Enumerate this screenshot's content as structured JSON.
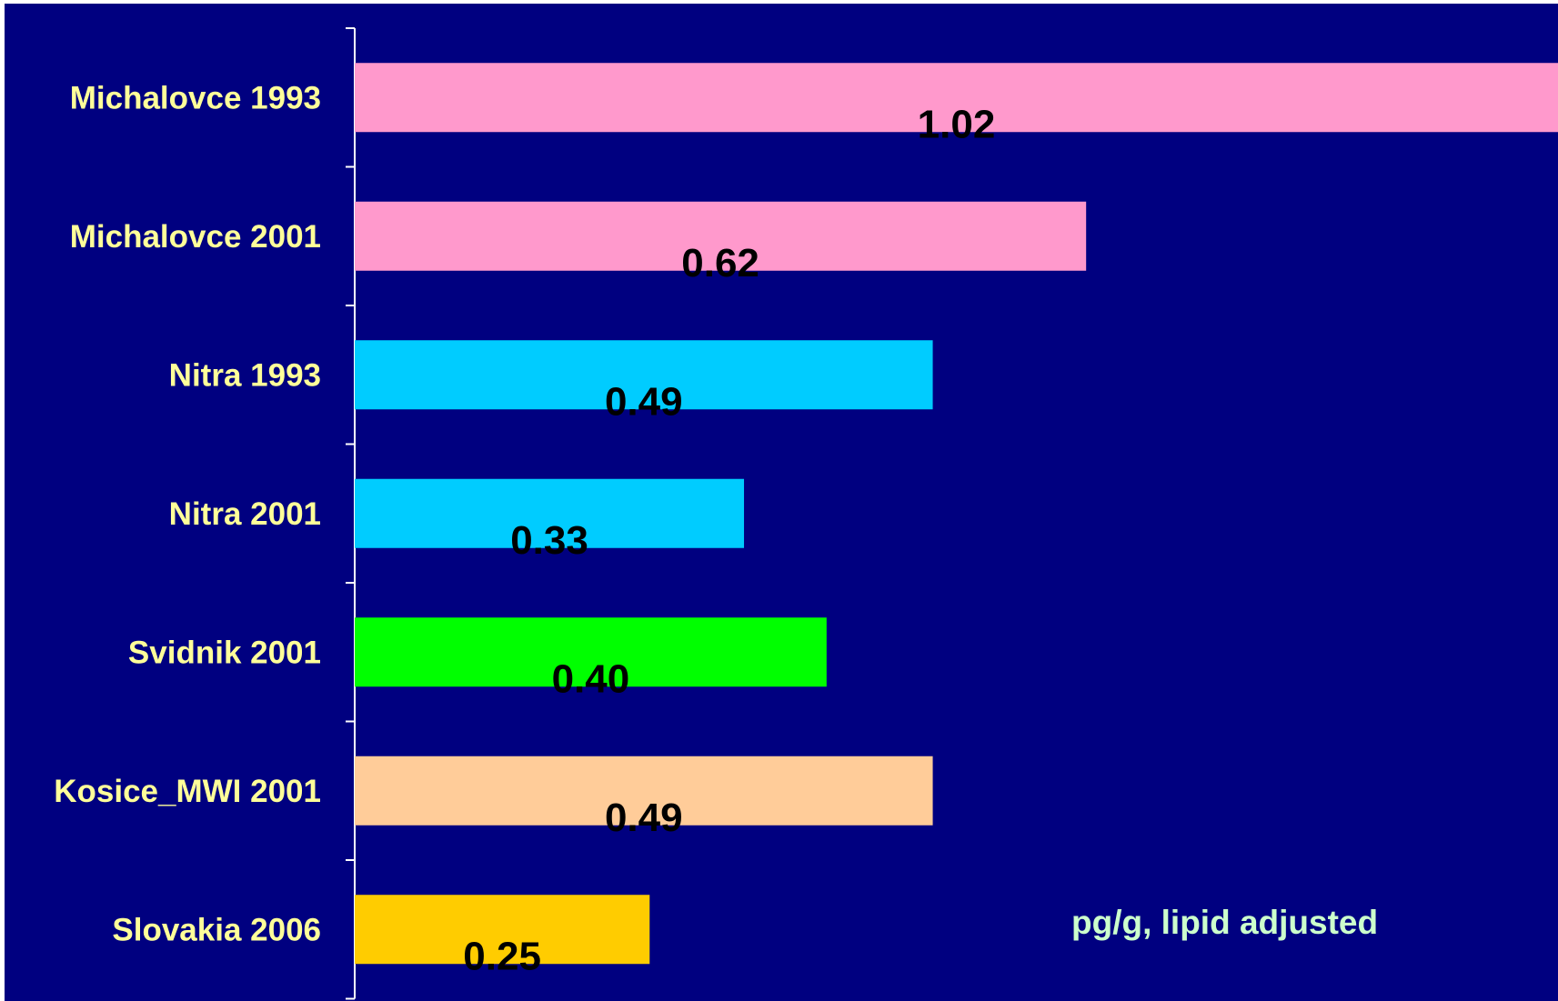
{
  "colors": {
    "background": "#000080",
    "label": "#FFFF99",
    "value_label": "#000000",
    "unit_label": "#CCFFCC",
    "axis": "#FFFFFF"
  },
  "chart_data": {
    "type": "bar",
    "orientation": "horizontal",
    "categories": [
      "Michalovce 1993",
      "Michalovce 2001",
      "Nitra 1993",
      "Nitra 2001",
      "Svidnik 2001",
      "Kosice_MWI 2001",
      "Slovakia 2006"
    ],
    "values": [
      1.02,
      0.62,
      0.49,
      0.33,
      0.4,
      0.49,
      0.25
    ],
    "value_labels": [
      "1.02",
      "0.62",
      "0.49",
      "0.33",
      "0.40",
      "0.49",
      "0.25"
    ],
    "bar_colors": [
      "#FF99CC",
      "#FF99CC",
      "#00CCFF",
      "#00CCFF",
      "#00FF00",
      "#FFCC99",
      "#FFCC00"
    ],
    "unit_annotation": "pg/g, lipid adjusted",
    "xlim": [
      0,
      1.02
    ],
    "grid": false,
    "legend": "none"
  }
}
